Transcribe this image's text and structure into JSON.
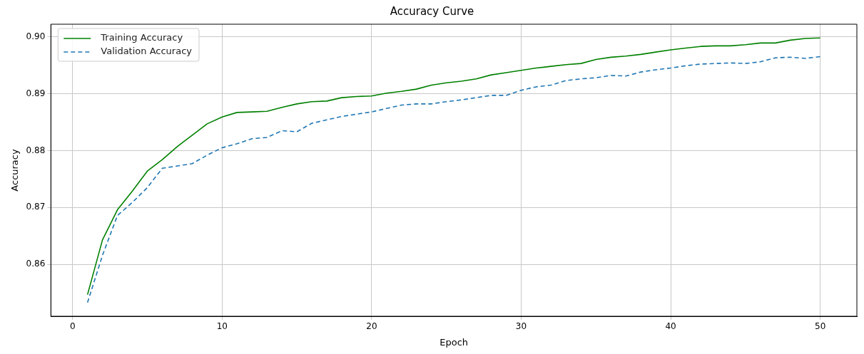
{
  "chart_data": {
    "type": "line",
    "title": "Accuracy Curve",
    "xlabel": "Epoch",
    "ylabel": "Accuracy",
    "x": [
      1,
      2,
      3,
      4,
      5,
      6,
      7,
      8,
      9,
      10,
      11,
      12,
      13,
      14,
      15,
      16,
      17,
      18,
      19,
      20,
      21,
      22,
      23,
      24,
      25,
      26,
      27,
      28,
      29,
      30,
      31,
      32,
      33,
      34,
      35,
      36,
      37,
      38,
      39,
      40,
      41,
      42,
      43,
      44,
      45,
      46,
      47,
      48,
      49,
      50
    ],
    "series": [
      {
        "name": "Training Accuracy",
        "color": "#008000",
        "line_style": "solid",
        "values": [
          0.8547,
          0.8643,
          0.8696,
          0.8729,
          0.8764,
          0.8784,
          0.8807,
          0.8827,
          0.8847,
          0.8859,
          0.8867,
          0.8868,
          0.8869,
          0.8876,
          0.8882,
          0.8886,
          0.8887,
          0.8893,
          0.8895,
          0.8896,
          0.8901,
          0.8904,
          0.8908,
          0.8915,
          0.8919,
          0.8922,
          0.8926,
          0.8933,
          0.8937,
          0.8941,
          0.8945,
          0.8948,
          0.8951,
          0.8953,
          0.896,
          0.8964,
          0.8966,
          0.8969,
          0.8973,
          0.8977,
          0.898,
          0.8983,
          0.8984,
          0.8984,
          0.8986,
          0.8989,
          0.8989,
          0.8994,
          0.8997,
          0.8998
        ]
      },
      {
        "name": "Validation Accuracy",
        "color": "#1f77b4",
        "line_style": "dashed",
        "values": [
          0.8533,
          0.8616,
          0.8686,
          0.8709,
          0.8735,
          0.8769,
          0.8773,
          0.8777,
          0.8792,
          0.8805,
          0.8812,
          0.8821,
          0.8823,
          0.8835,
          0.8833,
          0.8848,
          0.8854,
          0.886,
          0.8864,
          0.8868,
          0.8874,
          0.888,
          0.8882,
          0.8882,
          0.8886,
          0.8889,
          0.8893,
          0.8897,
          0.8897,
          0.8906,
          0.8912,
          0.8915,
          0.8923,
          0.8926,
          0.8928,
          0.8932,
          0.8931,
          0.8938,
          0.8942,
          0.8945,
          0.8949,
          0.8952,
          0.8953,
          0.8954,
          0.8953,
          0.8956,
          0.8963,
          0.8964,
          0.8962,
          0.8965
        ]
      }
    ],
    "xlim": [
      -1.45,
      52.45
    ],
    "xticks": [
      0,
      10,
      20,
      30,
      40,
      50
    ],
    "ylim": [
      0.8509,
      0.9022
    ],
    "yticks": [
      0.86,
      0.87,
      0.88,
      0.89,
      {
        "value": 0.9,
        "label": "0.90"
      }
    ],
    "grid": true,
    "legend": "top left"
  }
}
